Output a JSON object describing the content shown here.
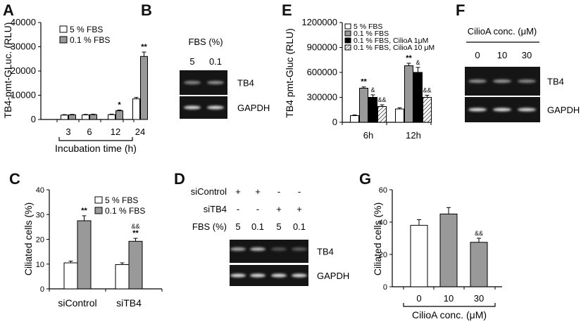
{
  "colors": {
    "bar_5fbs": "#ffffff",
    "bar_01fbs": "#999999",
    "bar_cilioa_1": "#000000",
    "bar_cilioa_10": "hatched",
    "gel_background": "#151515",
    "band": "#e8e8e8"
  },
  "chart_data": [
    {
      "panel": "A",
      "type": "bar",
      "ylabel": "TB4-pmt-GLuc. (RLU)",
      "xlabel": "Incubation time (h)",
      "categories": [
        "3",
        "6",
        "12",
        "24"
      ],
      "yticks": [
        "0",
        "10000",
        "20000",
        "30000",
        "40000"
      ],
      "ylim": [
        0,
        40000
      ],
      "series": [
        {
          "name": "5 % FBS",
          "values": [
            1800,
            1900,
            2000,
            8500
          ],
          "errors": [
            200,
            200,
            200,
            600
          ]
        },
        {
          "name": "0.1 % FBS",
          "values": [
            1900,
            2000,
            3600,
            26000
          ],
          "errors": [
            200,
            200,
            300,
            1800
          ]
        }
      ],
      "annotations": [
        {
          "category": 2,
          "series": 1,
          "text": "*"
        },
        {
          "category": 3,
          "series": 1,
          "text": "**"
        }
      ]
    },
    {
      "panel": "C",
      "type": "bar",
      "ylabel": "Ciliated cells (%)",
      "categories": [
        "siControl",
        "siTB4"
      ],
      "yticks": [
        "0",
        "10",
        "20",
        "30",
        "40"
      ],
      "ylim": [
        0,
        40
      ],
      "series": [
        {
          "name": "5 % FBS",
          "values": [
            10.5,
            9.8
          ],
          "errors": [
            0.7,
            0.7
          ]
        },
        {
          "name": "0.1 % FBS",
          "values": [
            27.5,
            19.2
          ],
          "errors": [
            2.0,
            1.2
          ]
        }
      ],
      "annotations": [
        {
          "category": 0,
          "series": 1,
          "text": "**"
        },
        {
          "category": 1,
          "series": 1,
          "text": "**"
        },
        {
          "category": 1,
          "series": 1,
          "text": "&&",
          "small": true
        }
      ]
    },
    {
      "panel": "E",
      "type": "bar",
      "ylabel": "TB4 pmt-Gluc (RLU)",
      "categories": [
        "6h",
        "12h"
      ],
      "yticks": [
        "0",
        "300000",
        "600000",
        "900000",
        "1200000"
      ],
      "ylim": [
        0,
        1200000
      ],
      "series": [
        {
          "name": "5 % FBS",
          "values": [
            80000,
            160000
          ],
          "errors": [
            8000,
            15000
          ]
        },
        {
          "name": "0.1 % FBS",
          "values": [
            410000,
            680000
          ],
          "errors": [
            15000,
            30000
          ]
        },
        {
          "name": "0.1 % FBS, CilioA 1μM",
          "values": [
            300000,
            600000
          ],
          "errors": [
            30000,
            60000
          ]
        },
        {
          "name": "0.1 % FBS, CilioA 10 μM",
          "values": [
            190000,
            300000
          ],
          "errors": [
            20000,
            25000
          ]
        }
      ],
      "annotations": [
        {
          "category": 0,
          "series": 1,
          "text": "**"
        },
        {
          "category": 0,
          "series": 2,
          "text": "&",
          "small": true
        },
        {
          "category": 0,
          "series": 3,
          "text": "&&",
          "small": true
        },
        {
          "category": 1,
          "series": 1,
          "text": "**"
        },
        {
          "category": 1,
          "series": 2,
          "text": "&",
          "small": true
        },
        {
          "category": 1,
          "series": 3,
          "text": "&&",
          "small": true
        }
      ]
    },
    {
      "panel": "G",
      "type": "bar",
      "ylabel": "Ciliated cells (%)",
      "xlabel": "CilioA conc. (μM)",
      "categories": [
        "0",
        "10",
        "30"
      ],
      "yticks": [
        "0",
        "20",
        "40",
        "60"
      ],
      "ylim": [
        0,
        60
      ],
      "series": [
        {
          "name": "CilioA",
          "values": [
            38,
            45,
            27.5
          ],
          "errors": [
            3.5,
            4,
            2.5
          ],
          "colors": [
            "#ffffff",
            "#999999",
            "#999999"
          ]
        }
      ],
      "annotations": [
        {
          "category": 2,
          "series": 0,
          "text": "&&",
          "small": true
        }
      ]
    }
  ],
  "gels": {
    "B": {
      "label": "B",
      "header": "FBS (%)",
      "lanes": [
        "5",
        "0.1"
      ],
      "rows": [
        {
          "name": "TB4",
          "intensity": [
            0.55,
            0.6
          ]
        },
        {
          "name": "GAPDH",
          "intensity": [
            0.95,
            0.95
          ]
        }
      ]
    },
    "D": {
      "label": "D",
      "conditions": [
        {
          "name": "siControl",
          "marks": [
            "+",
            "+",
            "-",
            "-"
          ]
        },
        {
          "name": "siTB4",
          "marks": [
            "-",
            "-",
            "+",
            "+"
          ]
        },
        {
          "name": "FBS (%)",
          "marks": [
            "5",
            "0.1",
            "5",
            "0.1"
          ]
        }
      ],
      "rows": [
        {
          "name": "TB4",
          "intensity": [
            0.7,
            0.8,
            0.3,
            0.35
          ]
        },
        {
          "name": "GAPDH",
          "intensity": [
            0.95,
            0.95,
            0.95,
            0.95
          ]
        }
      ]
    },
    "F": {
      "label": "F",
      "header": "CilioA conc. (μM)",
      "lanes": [
        "0",
        "10",
        "30"
      ],
      "rows": [
        {
          "name": "TB4",
          "intensity": [
            0.6,
            0.62,
            0.55
          ]
        },
        {
          "name": "GAPDH",
          "intensity": [
            0.95,
            0.95,
            0.92
          ]
        }
      ]
    }
  }
}
